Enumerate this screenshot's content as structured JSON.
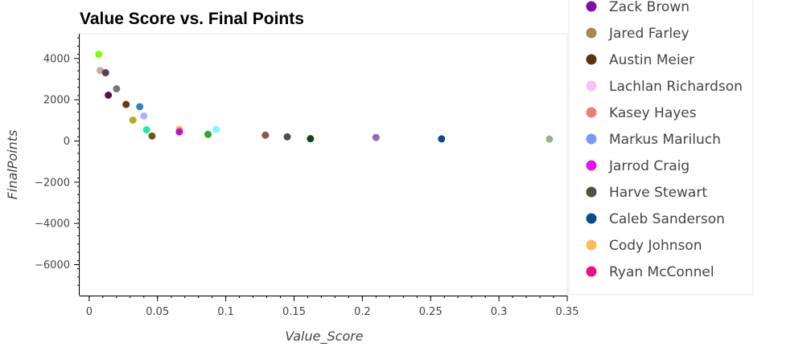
{
  "chart_data": {
    "type": "scatter",
    "title": "Value Score vs. Final Points",
    "xlabel": "Value_Score",
    "ylabel": "FinalPoints",
    "xlim": [
      -0.007,
      0.35
    ],
    "ylim": [
      -7500,
      5200
    ],
    "x_ticks": [
      0,
      0.05,
      0.1,
      0.15,
      0.2,
      0.25,
      0.3,
      0.35
    ],
    "x_tick_labels": [
      "0",
      "0.05",
      "0.1",
      "0.15",
      "0.2",
      "0.25",
      "0.3",
      "0.35"
    ],
    "y_ticks": [
      -6000,
      -4000,
      -2000,
      0,
      2000,
      4000
    ],
    "y_tick_labels": [
      "−6000",
      "−4000",
      "−2000",
      "0",
      "2000",
      "4000"
    ],
    "grid": false,
    "legend_placement": "right (outside plot, top clipped)",
    "points": [
      {
        "x": 0.007,
        "y": 4200,
        "color": "#7fff00"
      },
      {
        "x": 0.008,
        "y": 3420,
        "color": "#d2a99a"
      },
      {
        "x": 0.012,
        "y": 3310,
        "color": "#55405e"
      },
      {
        "x": 0.014,
        "y": 2220,
        "color": "#5e0e3e"
      },
      {
        "x": 0.02,
        "y": 2530,
        "color": "#7a7a7a"
      },
      {
        "x": 0.027,
        "y": 1770,
        "color": "#6b3a08"
      },
      {
        "x": 0.032,
        "y": 1010,
        "color": "#b8a82a"
      },
      {
        "x": 0.037,
        "y": 1660,
        "color": "#2f80c4"
      },
      {
        "x": 0.04,
        "y": 1210,
        "color": "#b3b0ff"
      },
      {
        "x": 0.042,
        "y": 540,
        "color": "#18f0a0"
      },
      {
        "x": 0.046,
        "y": 240,
        "color": "#6e5a18"
      },
      {
        "x": 0.066,
        "y": 560,
        "color": "#f5b351"
      },
      {
        "x": 0.066,
        "y": 440,
        "color": "#bf12c9"
      },
      {
        "x": 0.087,
        "y": 320,
        "color": "#2ea82e"
      },
      {
        "x": 0.093,
        "y": 560,
        "color": "#7ff9ff"
      },
      {
        "x": 0.129,
        "y": 280,
        "color": "#8c564b"
      },
      {
        "x": 0.145,
        "y": 200,
        "color": "#4e5245"
      },
      {
        "x": 0.162,
        "y": 110,
        "color": "#0c4a14"
      },
      {
        "x": 0.21,
        "y": 170,
        "color": "#9467bd"
      },
      {
        "x": 0.258,
        "y": 100,
        "color": "#0b4a8c"
      },
      {
        "x": 0.337,
        "y": 90,
        "color": "#8fb48f"
      }
    ],
    "legend": [
      {
        "name": "Zack Brown",
        "color": "#7b0fa8"
      },
      {
        "name": "Jared Farley",
        "color": "#a88a48"
      },
      {
        "name": "Austin Meier",
        "color": "#5a3308"
      },
      {
        "name": "Lachlan Richardson",
        "color": "#f8c2f0"
      },
      {
        "name": "Kasey Hayes",
        "color": "#f57a7a"
      },
      {
        "name": "Markus Mariluch",
        "color": "#7f96f7"
      },
      {
        "name": "Jarrod Craig",
        "color": "#e214f0"
      },
      {
        "name": "Harve Stewart",
        "color": "#4e5245"
      },
      {
        "name": "Caleb Sanderson",
        "color": "#0b4a8c"
      },
      {
        "name": "Cody Johnson",
        "color": "#f8bd5a"
      },
      {
        "name": "Ryan McConnel",
        "color": "#f00b87"
      }
    ]
  }
}
